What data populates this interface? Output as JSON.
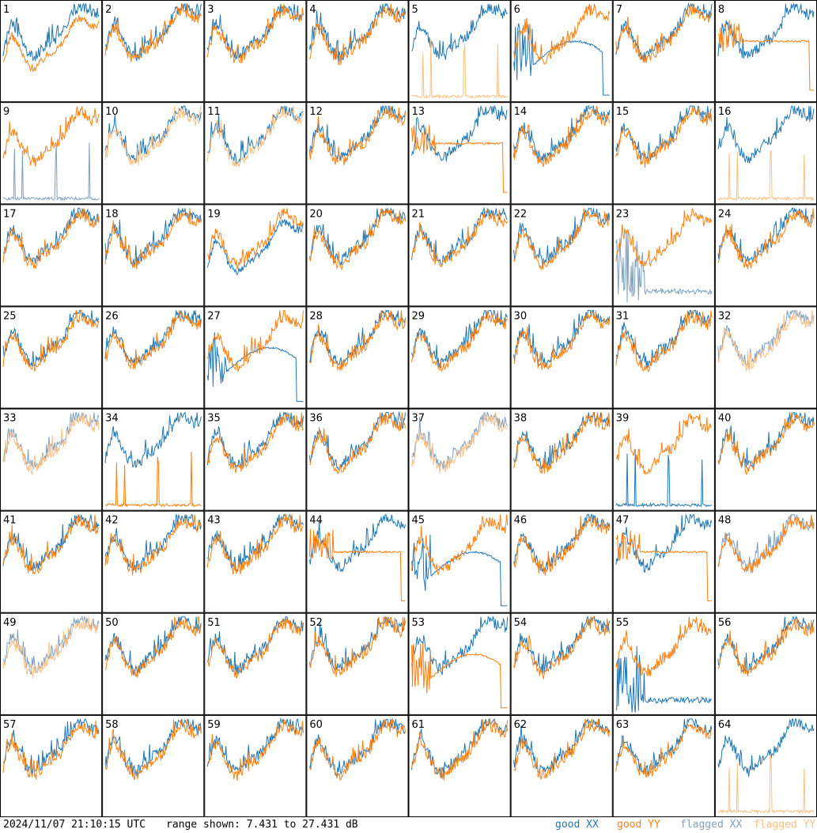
{
  "footer": {
    "timestamp": "2024/11/07 21:10:15 UTC",
    "range_prefix": "range shown: ",
    "range_text": "range shown: 7.431 to 27.431 dB"
  },
  "legend": {
    "good_xx": "good XX",
    "good_yy": "good YY",
    "flagged_xx": "flagged XX",
    "flagged_yy": "flagged YY"
  },
  "colors": {
    "good_xx": "#1f77b4",
    "good_yy": "#ff7f0e",
    "flagged_xx": "#7f9fbf",
    "flagged_yy": "#ffbf80",
    "grid": "#000000"
  },
  "chart_data": {
    "type": "line",
    "layout": "8x8 small multiples",
    "y_range_db": [
      7.431,
      27.431
    ],
    "x_axis": "frequency channel",
    "panels": [
      {
        "id": 1,
        "xx": "good",
        "yy": "good",
        "note": "YY drops low"
      },
      {
        "id": 2,
        "xx": "good",
        "yy": "good"
      },
      {
        "id": 3,
        "xx": "good",
        "yy": "good"
      },
      {
        "id": 4,
        "xx": "good",
        "yy": "good"
      },
      {
        "id": 5,
        "xx": "good",
        "yy": "flagged",
        "note": "YY dead with spikes"
      },
      {
        "id": 6,
        "xx": "good",
        "yy": "good",
        "note": "XX malfunction"
      },
      {
        "id": 7,
        "xx": "good",
        "yy": "good"
      },
      {
        "id": 8,
        "xx": "good",
        "yy": "good",
        "note": "YY flat"
      },
      {
        "id": 9,
        "xx": "flagged",
        "yy": "good",
        "note": "XX dead with spikes"
      },
      {
        "id": 10,
        "xx": "good",
        "yy": "flagged"
      },
      {
        "id": 11,
        "xx": "good",
        "yy": "flagged"
      },
      {
        "id": 12,
        "xx": "good",
        "yy": "good"
      },
      {
        "id": 13,
        "xx": "good",
        "yy": "good",
        "note": "YY flat"
      },
      {
        "id": 14,
        "xx": "good",
        "yy": "good"
      },
      {
        "id": 15,
        "xx": "good",
        "yy": "good"
      },
      {
        "id": 16,
        "xx": "good",
        "yy": "flagged",
        "note": "YY dead with spikes"
      },
      {
        "id": 17,
        "xx": "good",
        "yy": "good"
      },
      {
        "id": 18,
        "xx": "good",
        "yy": "good"
      },
      {
        "id": 19,
        "xx": "good",
        "yy": "good",
        "note": "XX low"
      },
      {
        "id": 20,
        "xx": "good",
        "yy": "good"
      },
      {
        "id": 21,
        "xx": "good",
        "yy": "good"
      },
      {
        "id": 22,
        "xx": "good",
        "yy": "good"
      },
      {
        "id": 23,
        "xx": "flagged",
        "yy": "good",
        "note": "XX noisy low"
      },
      {
        "id": 24,
        "xx": "good",
        "yy": "good"
      },
      {
        "id": 25,
        "xx": "good",
        "yy": "good"
      },
      {
        "id": 26,
        "xx": "good",
        "yy": "good"
      },
      {
        "id": 27,
        "xx": "good",
        "yy": "good",
        "note": "XX malfunction"
      },
      {
        "id": 28,
        "xx": "good",
        "yy": "good"
      },
      {
        "id": 29,
        "xx": "good",
        "yy": "good"
      },
      {
        "id": 30,
        "xx": "good",
        "yy": "good"
      },
      {
        "id": 31,
        "xx": "good",
        "yy": "good"
      },
      {
        "id": 32,
        "xx": "flagged",
        "yy": "flagged"
      },
      {
        "id": 33,
        "xx": "flagged",
        "yy": "flagged"
      },
      {
        "id": 34,
        "xx": "good",
        "yy": "good",
        "note": "YY dead with spikes"
      },
      {
        "id": 35,
        "xx": "good",
        "yy": "good"
      },
      {
        "id": 36,
        "xx": "good",
        "yy": "good"
      },
      {
        "id": 37,
        "xx": "flagged",
        "yy": "flagged"
      },
      {
        "id": 38,
        "xx": "good",
        "yy": "good"
      },
      {
        "id": 39,
        "xx": "good",
        "yy": "good",
        "note": "XX dead with spikes"
      },
      {
        "id": 40,
        "xx": "good",
        "yy": "good"
      },
      {
        "id": 41,
        "xx": "good",
        "yy": "good"
      },
      {
        "id": 42,
        "xx": "good",
        "yy": "good"
      },
      {
        "id": 43,
        "xx": "good",
        "yy": "good"
      },
      {
        "id": 44,
        "xx": "good",
        "yy": "good",
        "note": "YY flat"
      },
      {
        "id": 45,
        "xx": "good",
        "yy": "good",
        "note": "XX malfunction"
      },
      {
        "id": 46,
        "xx": "good",
        "yy": "good"
      },
      {
        "id": 47,
        "xx": "good",
        "yy": "good",
        "note": "YY flat"
      },
      {
        "id": 48,
        "xx": "flagged",
        "yy": "good"
      },
      {
        "id": 49,
        "xx": "flagged",
        "yy": "flagged"
      },
      {
        "id": 50,
        "xx": "good",
        "yy": "good"
      },
      {
        "id": 51,
        "xx": "good",
        "yy": "good"
      },
      {
        "id": 52,
        "xx": "good",
        "yy": "good"
      },
      {
        "id": 53,
        "xx": "good",
        "yy": "good",
        "note": "YY malfunction"
      },
      {
        "id": 54,
        "xx": "good",
        "yy": "good"
      },
      {
        "id": 55,
        "xx": "good",
        "yy": "good",
        "note": "XX noisy low"
      },
      {
        "id": 56,
        "xx": "good",
        "yy": "good"
      },
      {
        "id": 57,
        "xx": "good",
        "yy": "good"
      },
      {
        "id": 58,
        "xx": "good",
        "yy": "good"
      },
      {
        "id": 59,
        "xx": "good",
        "yy": "good"
      },
      {
        "id": 60,
        "xx": "good",
        "yy": "good"
      },
      {
        "id": 61,
        "xx": "good",
        "yy": "good"
      },
      {
        "id": 62,
        "xx": "good",
        "yy": "good"
      },
      {
        "id": 63,
        "xx": "good",
        "yy": "good"
      },
      {
        "id": 64,
        "xx": "good",
        "yy": "flagged",
        "note": "YY dead with spikes"
      }
    ]
  }
}
